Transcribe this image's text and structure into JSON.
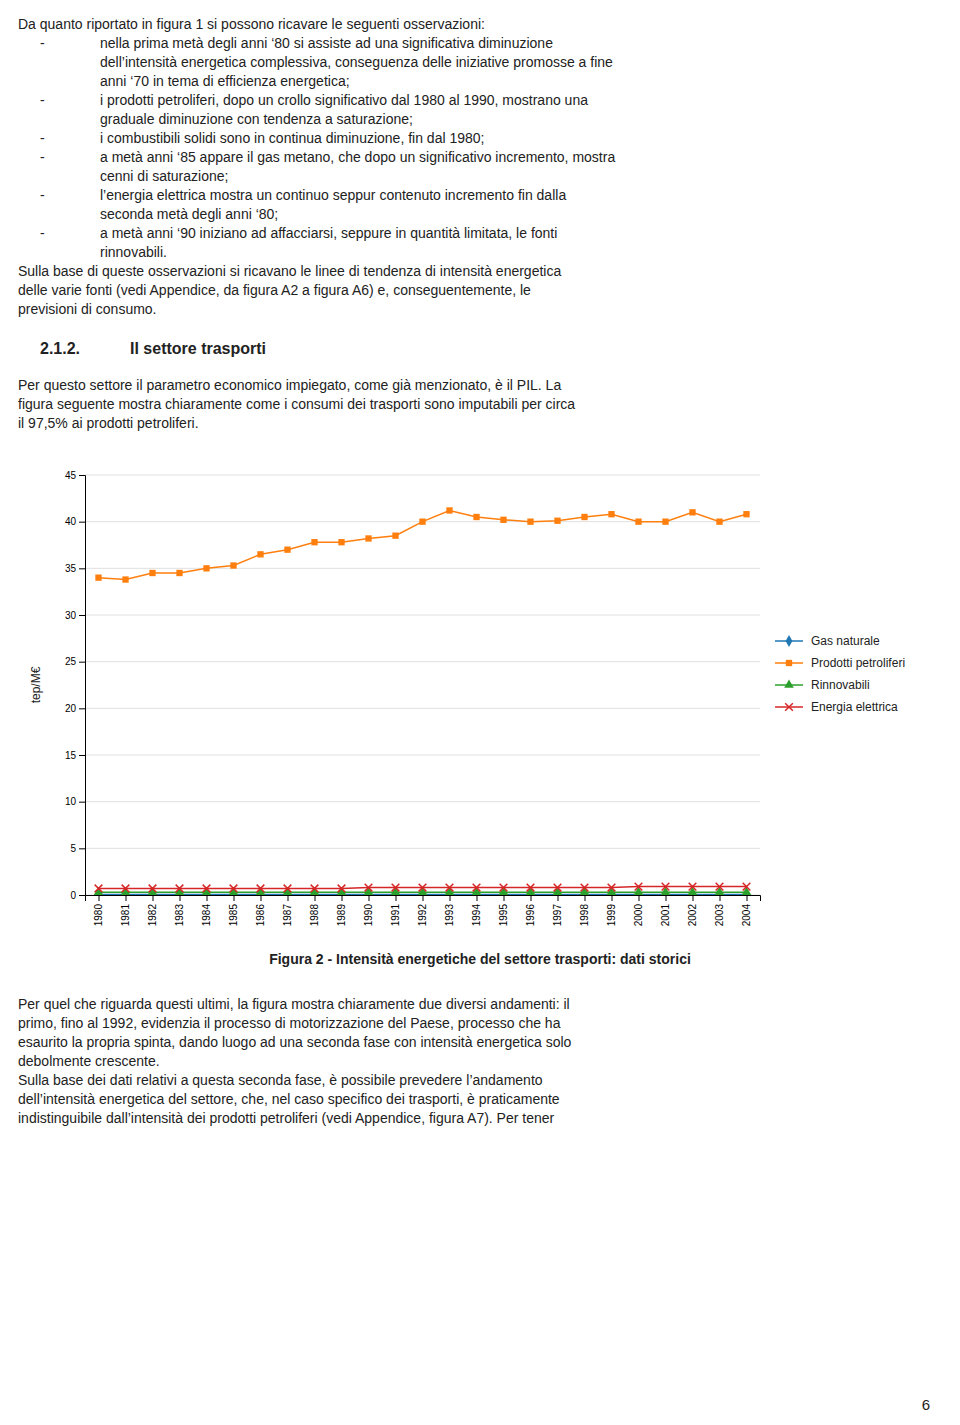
{
  "chart_data": {
    "type": "line",
    "title": "Figura 2 - Intensità energetiche del settore trasporti: dati storici",
    "y_label": "tep/M€",
    "x": [
      1980,
      1981,
      1982,
      1983,
      1984,
      1985,
      1986,
      1987,
      1988,
      1989,
      1990,
      1991,
      1992,
      1993,
      1994,
      1995,
      1996,
      1997,
      1998,
      1999,
      2000,
      2001,
      2002,
      2003,
      2004
    ],
    "xlim": [
      1979.5,
      2004.5
    ],
    "xticks": [
      1980,
      1981,
      1982,
      1983,
      1984,
      1985,
      1986,
      1987,
      1988,
      1989,
      1990,
      1991,
      1992,
      1993,
      1994,
      1995,
      1996,
      1997,
      1998,
      1999,
      2000,
      2001,
      2002,
      2003,
      2004
    ],
    "ylim": [
      0,
      45
    ],
    "yticks": [
      0,
      5,
      10,
      15,
      20,
      25,
      30,
      35,
      40,
      45
    ],
    "grid": true,
    "legend": "right",
    "series": [
      {
        "name": "Gas naturale",
        "marker": "diamond",
        "values": [
          0.05,
          0.05,
          0.05,
          0.05,
          0.05,
          0.05,
          0.05,
          0.05,
          0.05,
          0.05,
          0.05,
          0.05,
          0.05,
          0.05,
          0.05,
          0.05,
          0.05,
          0.05,
          0.05,
          0.05,
          0.05,
          0.05,
          0.05,
          0.05,
          0.05
        ]
      },
      {
        "name": "Prodotti petroliferi",
        "marker": "square",
        "values": [
          34.0,
          33.8,
          34.5,
          34.5,
          35.0,
          35.3,
          36.5,
          37.0,
          37.8,
          37.8,
          38.2,
          38.5,
          40.0,
          41.2,
          40.5,
          40.2,
          40.0,
          40.1,
          40.5,
          40.8,
          40.0,
          40.0,
          41.0,
          40.0,
          40.8
        ]
      },
      {
        "name": "Rinnovabili",
        "marker": "triangle",
        "values": [
          0.3,
          0.3,
          0.3,
          0.3,
          0.3,
          0.3,
          0.3,
          0.3,
          0.3,
          0.3,
          0.3,
          0.3,
          0.3,
          0.3,
          0.3,
          0.3,
          0.3,
          0.3,
          0.3,
          0.3,
          0.3,
          0.3,
          0.3,
          0.3,
          0.3
        ]
      },
      {
        "name": "Energia elettrica",
        "marker": "x",
        "values": [
          0.7,
          0.7,
          0.7,
          0.7,
          0.7,
          0.7,
          0.7,
          0.7,
          0.7,
          0.7,
          0.8,
          0.8,
          0.8,
          0.8,
          0.8,
          0.8,
          0.8,
          0.8,
          0.8,
          0.8,
          0.9,
          0.9,
          0.9,
          0.9,
          0.9
        ]
      }
    ]
  },
  "page_text": {
    "intro": "Da quanto riportato in figura 1 si possono ricavare le seguenti osservazioni:",
    "bullet_mark": "-",
    "bullets": [
      [
        "nella prima metà degli anni ‘80 si assiste ad una significativa diminuzione",
        "dell’intensità energetica complessiva, conseguenza delle iniziative promosse a fine",
        "anni ‘70 in tema di efficienza energetica;"
      ],
      [
        "i prodotti petroliferi, dopo un crollo significativo dal 1980 al 1990, mostrano una",
        "graduale diminuzione con tendenza a saturazione;"
      ],
      [
        "i combustibili solidi sono in continua diminuzione, fin dal 1980;"
      ],
      [
        "a metà anni ‘85 appare il gas metano, che dopo un significativo incremento, mostra",
        "cenni di saturazione;"
      ],
      [
        "l’energia elettrica mostra un continuo seppur contenuto incremento fin dalla",
        "seconda metà degli anni ‘80;"
      ],
      [
        "a metà anni ‘90 iniziano ad affacciarsi, seppure in quantità limitata, le fonti",
        "rinnovabili."
      ]
    ],
    "paragraph_1": [
      "Sulla base di queste osservazioni si ricavano le linee di tendenza di intensità energetica",
      "delle varie fonti (vedi Appendice, da figura A2 a figura A6) e, conseguentemente, le",
      "previsioni di consumo."
    ],
    "section_number": "2.1.2.",
    "section_title": "Il settore trasporti",
    "paragraph_2": [
      "Per questo settore il parametro economico impiegato, come già menzionato, è il PIL. La",
      "figura seguente mostra chiaramente come i consumi dei trasporti sono imputabili per circa",
      "il 97,5% ai prodotti petroliferi."
    ],
    "paragraph_3": [
      "Per quel che riguarda questi ultimi, la figura mostra chiaramente due diversi andamenti: il",
      "primo, fino al 1992, evidenzia il processo di motorizzazione del Paese, processo che ha",
      "esaurito la propria spinta, dando luogo ad una seconda fase con intensità energetica solo",
      "debolmente crescente.",
      "Sulla base dei dati relativi a questa seconda fase, è possibile prevedere l’andamento",
      "dell’intensità energetica del settore, che, nel caso specifico dei trasporti, è praticamente",
      "indistinguibile dall’intensità dei prodotti petroliferi (vedi Appendice, figura A7). Per tener"
    ],
    "page_number": "6"
  }
}
